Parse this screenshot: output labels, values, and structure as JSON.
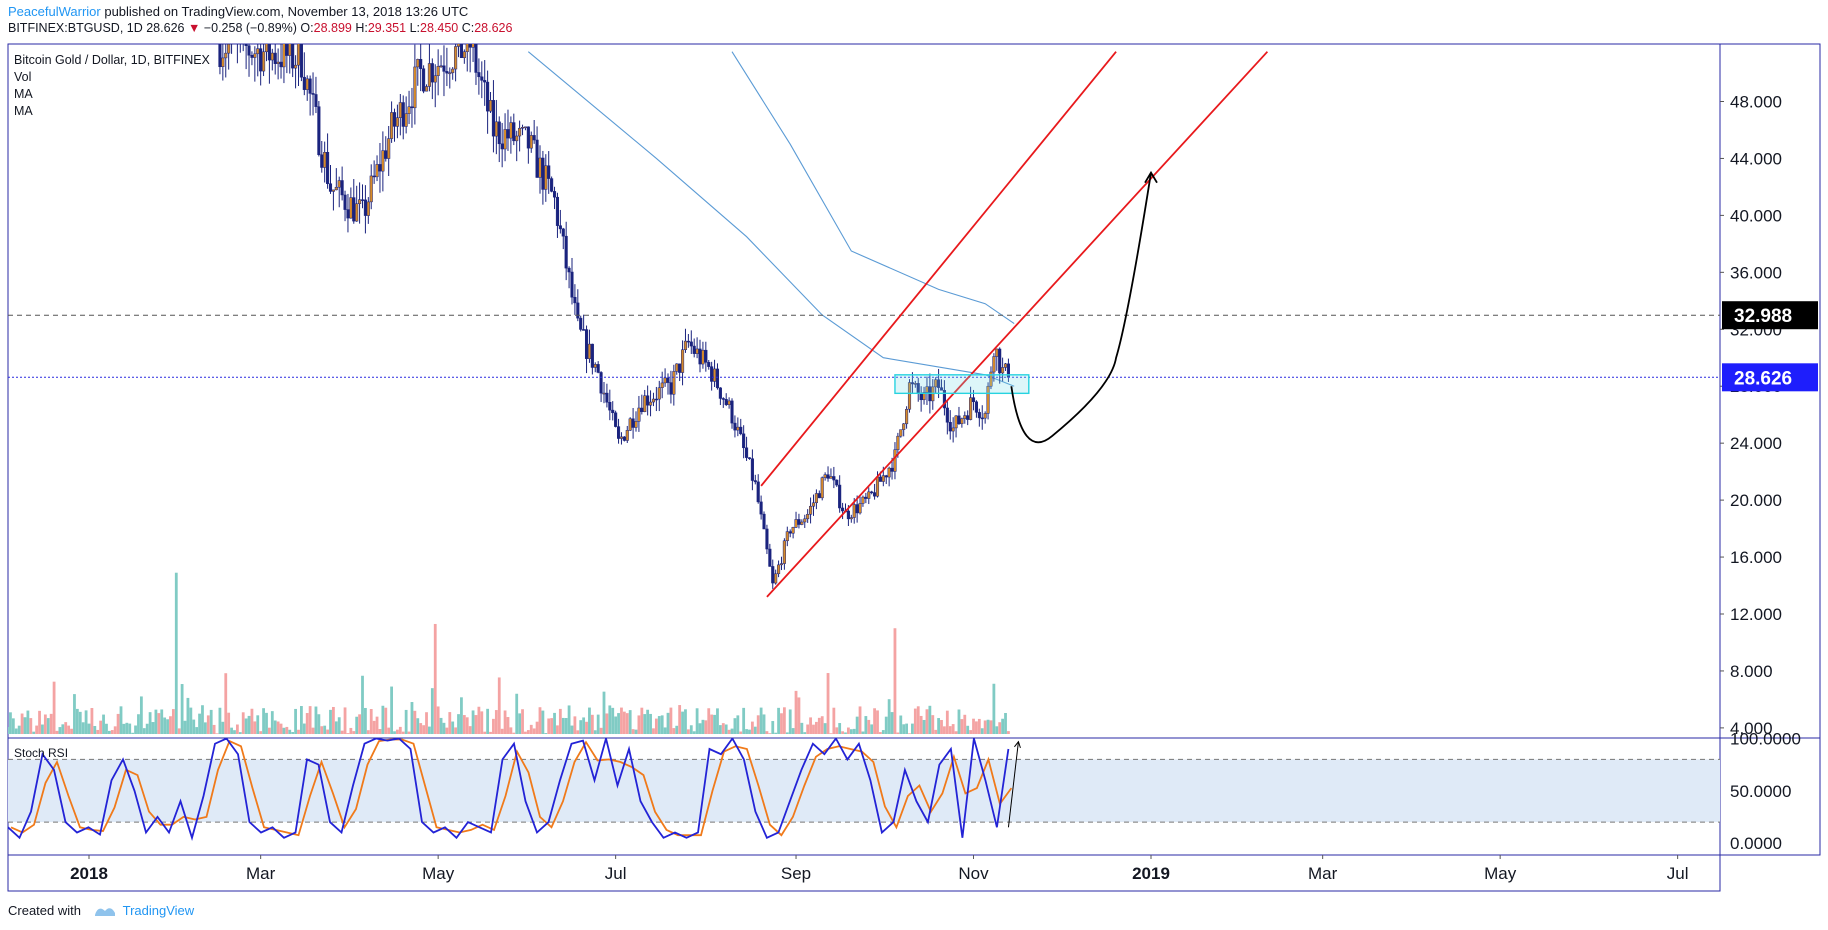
{
  "header": {
    "author": "PeacefulWarrior",
    "published_text": "published on TradingView.com, November 13, 2018 13:26 UTC"
  },
  "ohlc_bar": {
    "symbol": "BITFINEX:BTGUSD, 1D",
    "last": "28.626",
    "change_arrow": "▼",
    "change": "−0.258 (−0.89%)",
    "o_label": "O:",
    "o": "28.899",
    "h_label": "H:",
    "h": "29.351",
    "l_label": "L:",
    "l": "28.450",
    "c_label": "C:",
    "c": "28.626"
  },
  "legend": {
    "title": "Bitcoin Gold / Dollar, 1D, BITFINEX",
    "vol": "Vol",
    "ma1": "MA",
    "ma2": "MA"
  },
  "stoch_label": "Stoch RSI",
  "footer": {
    "created_with": "Created with",
    "brand": "TradingView"
  },
  "colors": {
    "candle_up": "#d68a2a",
    "candle_down": "#1a237e",
    "vol_up": "#80cbc4",
    "vol_down": "#f4a3a3",
    "ma": "#5b9bd5",
    "channel": "#e8191c",
    "resistance_label_bg": "#000000",
    "price_label_bg": "#1e1efc",
    "stoch_k": "#2323d6",
    "stoch_d": "#f07a1a",
    "stoch_band": "#dfeaf7"
  },
  "chart_data": {
    "type": "candlestick",
    "title": "Bitcoin Gold / Dollar, 1D, BITFINEX",
    "x_axis_labels": [
      "2018",
      "Mar",
      "May",
      "Jul",
      "Sep",
      "Nov",
      "2019",
      "Mar",
      "May",
      "Jul"
    ],
    "x_axis_dates": [
      "2018-01-01",
      "2018-03-01",
      "2018-05-01",
      "2018-07-01",
      "2018-09-01",
      "2018-11-01",
      "2019-01-01",
      "2019-03-01",
      "2019-05-01",
      "2019-07-01"
    ],
    "price_axis_labels": [
      "48.000",
      "44.000",
      "40.000",
      "36.000",
      "32.000",
      "28.000",
      "24.000",
      "20.000",
      "16.000",
      "12.000",
      "8.000",
      "4.000"
    ],
    "price_axis_values": [
      48,
      44,
      40,
      36,
      32,
      28,
      24,
      20,
      16,
      12,
      8,
      4
    ],
    "ylim": [
      3.2,
      51.5
    ],
    "price_series_approx": [
      {
        "date": "2018-02-15",
        "close": 52
      },
      {
        "date": "2018-03-15",
        "close": 51
      },
      {
        "date": "2018-03-25",
        "close": 42
      },
      {
        "date": "2018-04-05",
        "close": 40
      },
      {
        "date": "2018-04-15",
        "close": 46
      },
      {
        "date": "2018-04-25",
        "close": 50
      },
      {
        "date": "2018-05-12",
        "close": 52
      },
      {
        "date": "2018-05-20",
        "close": 46
      },
      {
        "date": "2018-06-01",
        "close": 45
      },
      {
        "date": "2018-06-10",
        "close": 41
      },
      {
        "date": "2018-06-18",
        "close": 32
      },
      {
        "date": "2018-06-25",
        "close": 29
      },
      {
        "date": "2018-07-02",
        "close": 24
      },
      {
        "date": "2018-07-10",
        "close": 27
      },
      {
        "date": "2018-07-20",
        "close": 28
      },
      {
        "date": "2018-07-26",
        "close": 31
      },
      {
        "date": "2018-08-03",
        "close": 29
      },
      {
        "date": "2018-08-10",
        "close": 26
      },
      {
        "date": "2018-08-18",
        "close": 21
      },
      {
        "date": "2018-08-24",
        "close": 14
      },
      {
        "date": "2018-08-30",
        "close": 18
      },
      {
        "date": "2018-09-05",
        "close": 19
      },
      {
        "date": "2018-09-12",
        "close": 22
      },
      {
        "date": "2018-09-18",
        "close": 19
      },
      {
        "date": "2018-09-26",
        "close": 20
      },
      {
        "date": "2018-10-05",
        "close": 23
      },
      {
        "date": "2018-10-10",
        "close": 28
      },
      {
        "date": "2018-10-15",
        "close": 27
      },
      {
        "date": "2018-10-20",
        "close": 28
      },
      {
        "date": "2018-10-25",
        "close": 25
      },
      {
        "date": "2018-11-01",
        "close": 27
      },
      {
        "date": "2018-11-05",
        "close": 26
      },
      {
        "date": "2018-11-08",
        "close": 31
      },
      {
        "date": "2018-11-11",
        "close": 29
      },
      {
        "date": "2018-11-13",
        "close": 28.626
      }
    ],
    "volume_approx": [
      {
        "date": "2018-01-01",
        "value": 4.3
      },
      {
        "date": "2018-01-31",
        "value": 14.9
      },
      {
        "date": "2018-03-20",
        "value": 5.5
      },
      {
        "date": "2018-04-30",
        "value": 11.3
      },
      {
        "date": "2018-07-01",
        "value": 4.8
      },
      {
        "date": "2018-09-01",
        "value": 6.6
      },
      {
        "date": "2018-10-05",
        "value": 11.0
      },
      {
        "date": "2018-11-08",
        "value": 7.1
      }
    ],
    "moving_averages": [
      {
        "name": "MA",
        "points": [
          {
            "date": "2018-06-01",
            "value": 51.5
          },
          {
            "date": "2018-07-15",
            "value": 44
          },
          {
            "date": "2018-08-15",
            "value": 38.5
          },
          {
            "date": "2018-09-10",
            "value": 33
          },
          {
            "date": "2018-10-01",
            "value": 30
          },
          {
            "date": "2018-11-05",
            "value": 28.8
          },
          {
            "date": "2018-11-15",
            "value": 28
          }
        ]
      },
      {
        "name": "MA",
        "points": [
          {
            "date": "2018-08-10",
            "value": 51.5
          },
          {
            "date": "2018-08-30",
            "value": 45
          },
          {
            "date": "2018-09-20",
            "value": 37.5
          },
          {
            "date": "2018-10-20",
            "value": 34.8
          },
          {
            "date": "2018-11-05",
            "value": 33.8
          },
          {
            "date": "2018-11-15",
            "value": 32.4
          }
        ]
      }
    ],
    "horizontal_lines": [
      {
        "value": 32.988,
        "style": "dashed",
        "label": "32.988"
      },
      {
        "value": 28.626,
        "style": "dotted",
        "label": "28.626"
      }
    ],
    "channel": {
      "upper": [
        {
          "date": "2018-08-20",
          "value": 21
        },
        {
          "date": "2018-12-20",
          "value": 51.5
        }
      ],
      "lower": [
        {
          "date": "2018-08-22",
          "value": 13.2
        },
        {
          "date": "2019-02-10",
          "value": 51.5
        }
      ]
    },
    "zone": {
      "date_from": "2018-10-05",
      "date_to": "2018-11-20",
      "low": 27.5,
      "high": 28.8
    },
    "projection_arrow": [
      {
        "date": "2018-11-14",
        "value": 28
      },
      {
        "date": "2018-11-28",
        "value": 24.5
      },
      {
        "date": "2018-12-20",
        "value": 30
      },
      {
        "date": "2019-01-01",
        "value": 43
      }
    ],
    "stoch_rsi": {
      "axis_labels": [
        "100.0000",
        "50.0000",
        "0.0000"
      ],
      "axis_values": [
        100,
        50,
        0
      ],
      "upper_band": 80,
      "lower_band": 20,
      "k_approx": [
        15,
        5,
        30,
        85,
        70,
        20,
        10,
        15,
        8,
        60,
        80,
        50,
        10,
        25,
        10,
        40,
        5,
        45,
        95,
        100,
        85,
        20,
        10,
        15,
        5,
        10,
        80,
        75,
        20,
        10,
        55,
        95,
        100,
        98,
        100,
        90,
        20,
        10,
        15,
        5,
        20,
        15,
        10,
        80,
        95,
        40,
        10,
        20,
        60,
        95,
        98,
        60,
        100,
        55,
        90,
        40,
        20,
        5,
        10,
        5,
        10,
        90,
        85,
        100,
        80,
        30,
        5,
        10,
        40,
        70,
        95,
        85,
        100,
        80,
        95,
        60,
        10,
        20,
        70,
        40,
        20,
        75,
        90,
        5,
        100,
        60,
        15,
        90
      ]
    }
  }
}
